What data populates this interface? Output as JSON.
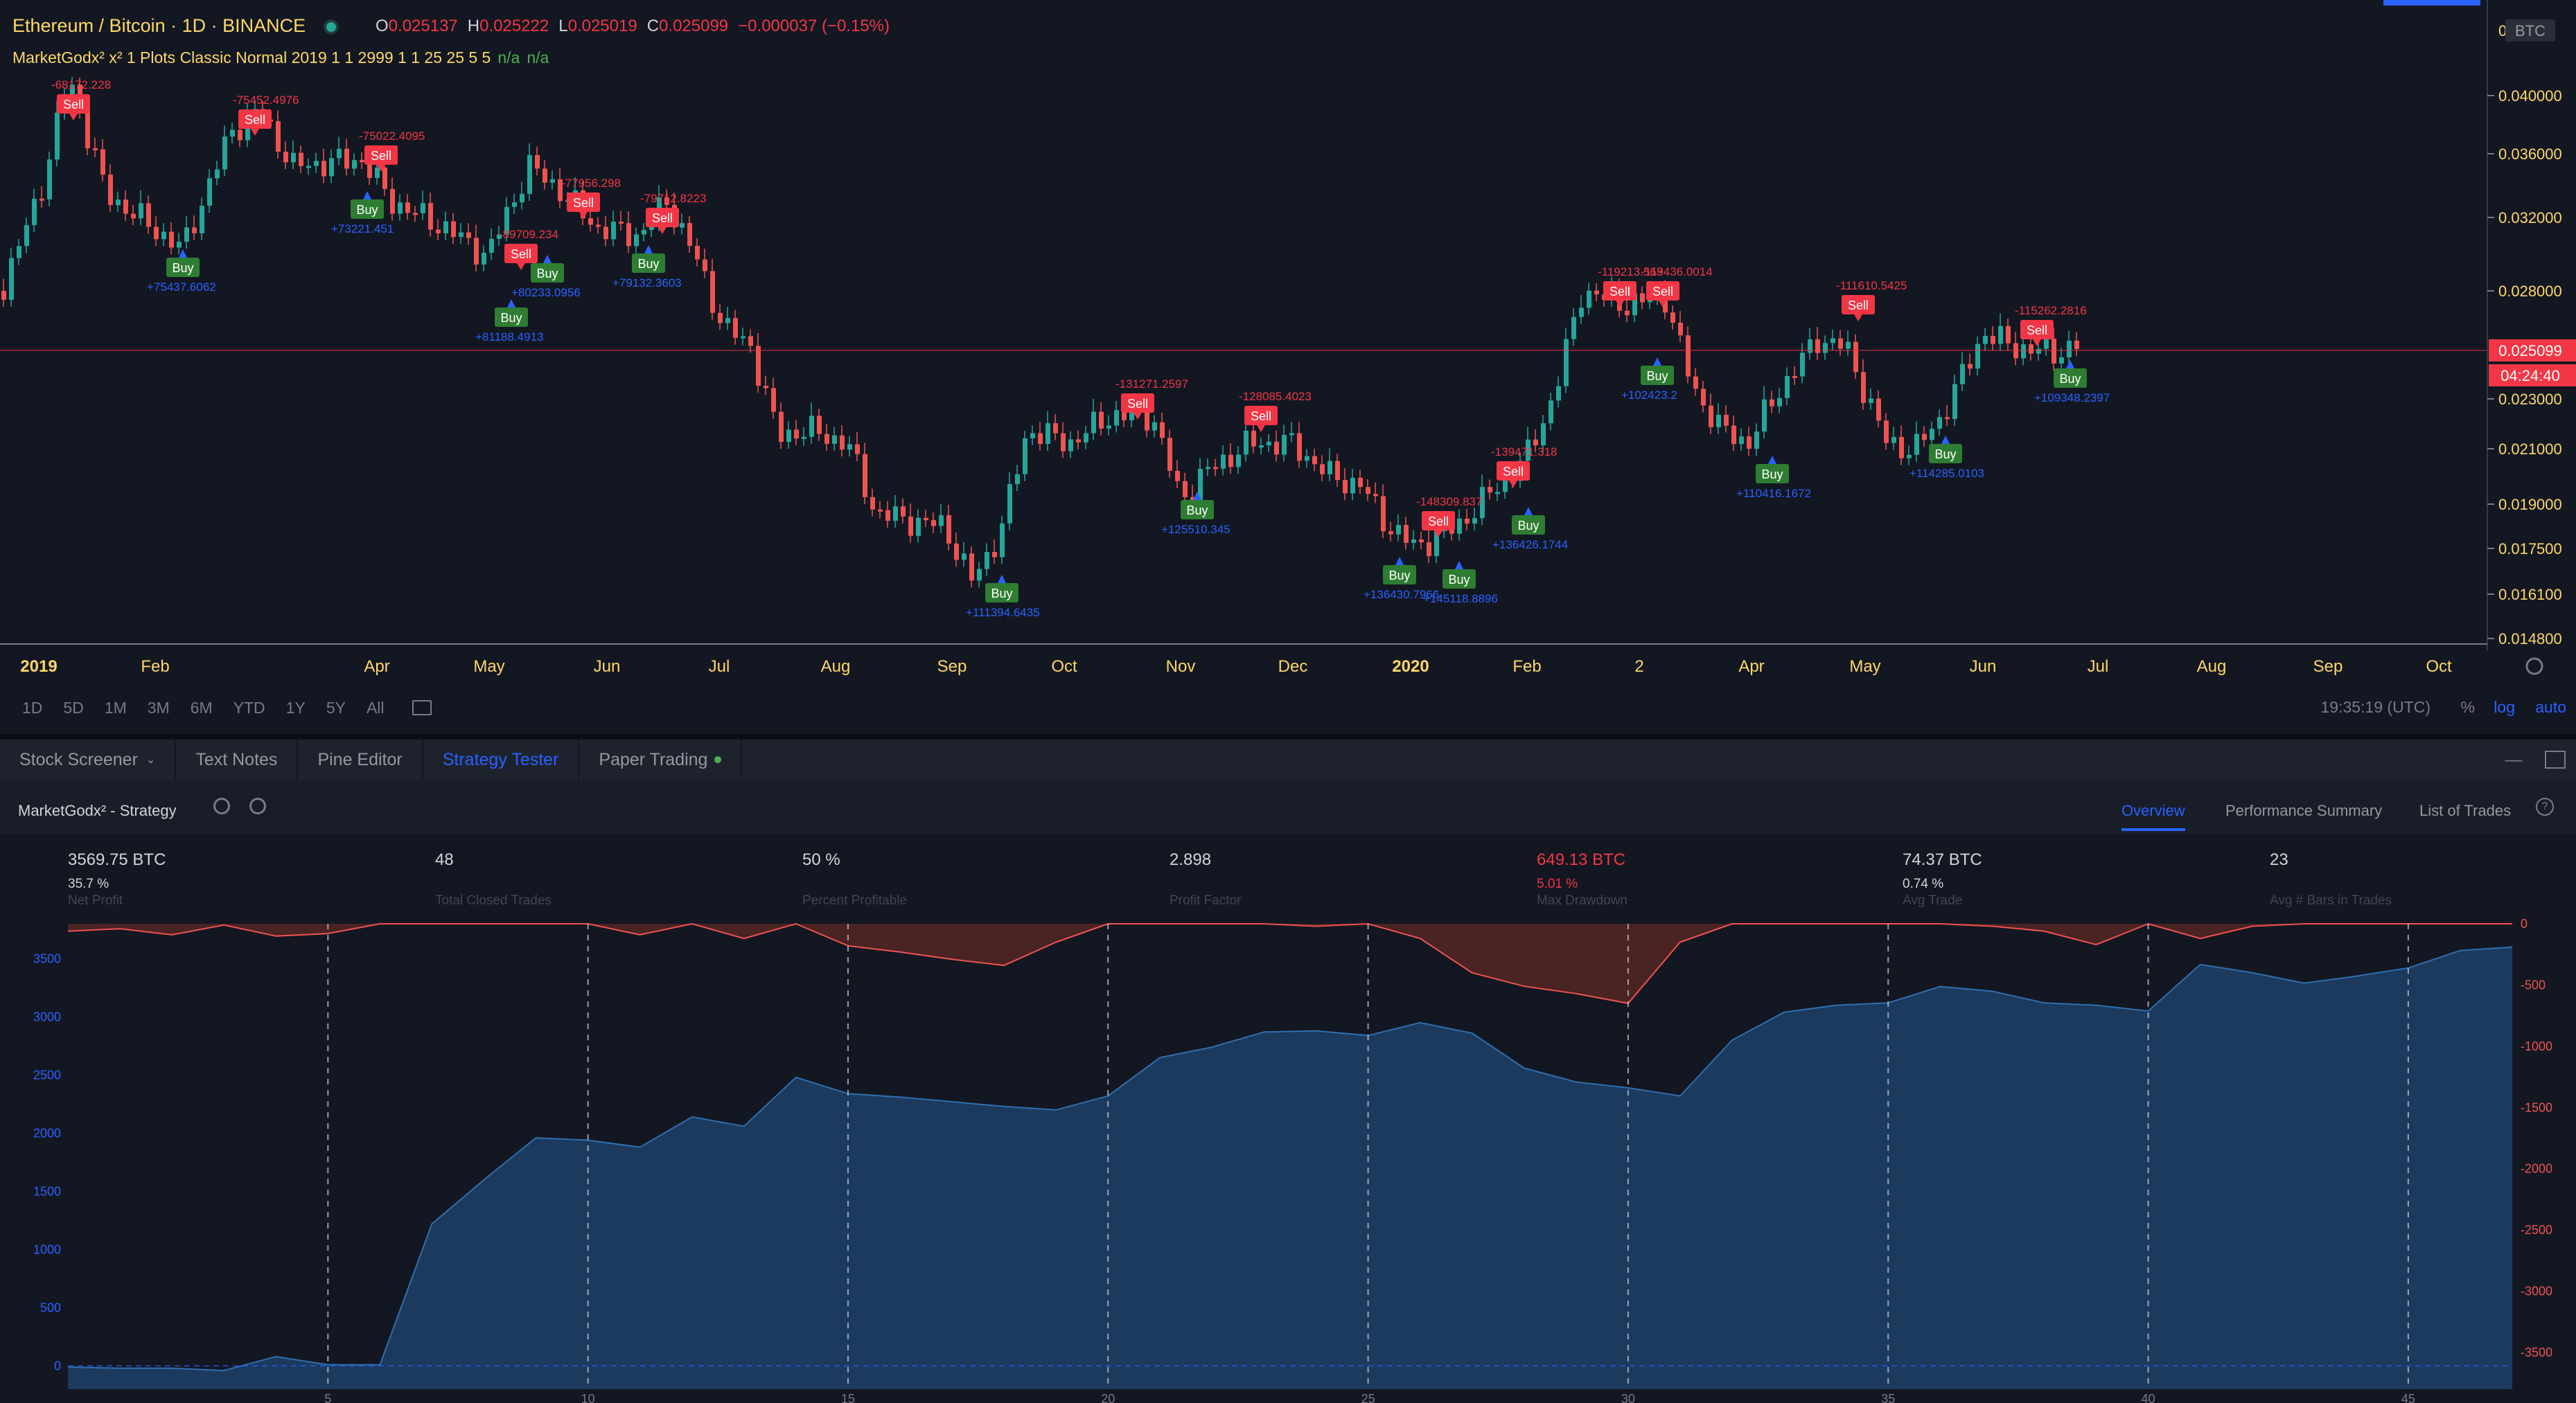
{
  "header": {
    "symbol_title": "Ethereum / Bitcoin · 1D · BINANCE",
    "ohlc": {
      "o_label": "O",
      "o": "0.025137",
      "h_label": "H",
      "h": "0.025222",
      "l_label": "L",
      "l": "0.025019",
      "c_label": "C",
      "c": "0.025099",
      "change": "−0.000037 (−0.15%)"
    },
    "indicator": "MarketGodx² x² 1 Plots Classic Normal 2019 1 1 2999 1 1 25 25 5 5",
    "indicator_na1": "n/a",
    "indicator_na2": "n/a"
  },
  "price_axis": {
    "currency": "BTC",
    "ticks": [
      "0.040000",
      "0.036000",
      "0.032000",
      "0.028000",
      "0.025099",
      "0.023000",
      "0.021000",
      "0.019000",
      "0.017500",
      "0.016100",
      "0.014800"
    ],
    "current_price": "0.025099",
    "countdown": "04:24:40",
    "top_tick": "0"
  },
  "time_axis": [
    "2019",
    "Feb",
    "Apr",
    "May",
    "Jun",
    "Jul",
    "Aug",
    "Sep",
    "Oct",
    "Nov",
    "Dec",
    "2020",
    "Feb",
    "2",
    "Apr",
    "May",
    "Jun",
    "Jul",
    "Aug",
    "Sep",
    "Oct"
  ],
  "signals": {
    "sell_label": "Sell",
    "buy_label": "Buy",
    "sell": [
      {
        "label": "-68172.228"
      },
      {
        "label": "-75452.4976"
      },
      {
        "label": "-75022.4095"
      },
      {
        "label": "-77956.298"
      },
      {
        "label": "-79712.8223"
      },
      {
        "label": "-89709.234"
      },
      {
        "label": "-131271.2597"
      },
      {
        "label": "-128085.4023"
      },
      {
        "label": "-139471.318"
      },
      {
        "label": "-148309.837"
      },
      {
        "label": "-119213.563"
      },
      {
        "label": "-119436.0014"
      },
      {
        "label": "-111610.5425"
      },
      {
        "label": "-115262.2816"
      }
    ],
    "buy": [
      {
        "label": "+75437.6062"
      },
      {
        "label": "+73221.451"
      },
      {
        "label": "+81188.4913"
      },
      {
        "label": "+80233.0956"
      },
      {
        "label": "+79132.3603"
      },
      {
        "label": "+111394.6435"
      },
      {
        "label": "+125510.345"
      },
      {
        "label": "+136430.7966"
      },
      {
        "label": "+145118.8896"
      },
      {
        "label": "+136426.1744"
      },
      {
        "label": "+102423.2"
      },
      {
        "label": "+110416.1672"
      },
      {
        "label": "+114285.0103"
      },
      {
        "label": "+109348.2397"
      }
    ]
  },
  "toolbar": {
    "ranges": [
      "1D",
      "5D",
      "1M",
      "3M",
      "6M",
      "YTD",
      "1Y",
      "5Y",
      "All"
    ],
    "clock": "19:35:19 (UTC)",
    "percent": "%",
    "log": "log",
    "auto": "auto"
  },
  "bottom_tabs": [
    {
      "label": "Stock Screener"
    },
    {
      "label": "Text Notes"
    },
    {
      "label": "Pine Editor"
    },
    {
      "label": "Strategy Tester"
    },
    {
      "label": "Paper Trading"
    }
  ],
  "strategy": {
    "name": "MarketGodx² - Strategy",
    "tabs": [
      "Overview",
      "Performance Summary",
      "List of Trades"
    ],
    "stats": [
      {
        "main": "3569.75 BTC",
        "sub": "35.7 %",
        "label": "Net Profit"
      },
      {
        "main": "48",
        "sub": "",
        "label": "Total Closed Trades"
      },
      {
        "main": "50 %",
        "sub": "",
        "label": "Percent Profitable"
      },
      {
        "main": "2.898",
        "sub": "",
        "label": "Profit Factor"
      },
      {
        "main": "649.13 BTC",
        "sub": "5.01 %",
        "label": "Max Drawdown"
      },
      {
        "main": "74.37 BTC",
        "sub": "0.74 %",
        "label": "Avg Trade"
      },
      {
        "main": "23",
        "sub": "",
        "label": "Avg # Bars in Trades"
      }
    ]
  },
  "colors": {
    "bg": "#131722",
    "up": "#26a69a",
    "down": "#ef5350",
    "sell": "#f23645",
    "buy": "#2e7d32",
    "buy_text": "#2962ff",
    "equity": "#1e4a7a",
    "drawdown": "#5d2a26"
  },
  "chart_data": [
    {
      "type": "area",
      "title": "",
      "x": [
        0,
        1,
        2,
        3,
        4,
        5,
        6,
        7,
        8,
        9,
        10,
        11,
        12,
        13,
        14,
        15,
        16,
        17,
        18,
        19,
        20,
        21,
        22,
        23,
        24,
        25,
        26,
        27,
        28,
        29,
        30,
        31,
        32,
        33,
        34,
        35,
        36,
        37,
        38,
        39,
        40,
        41,
        42,
        43,
        44,
        45,
        46,
        47
      ],
      "series": [
        {
          "values": [
            -10,
            -20,
            -20,
            -40,
            80,
            10,
            10,
            1220,
            1600,
            1960,
            1940,
            1880,
            2140,
            2060,
            2480,
            2340,
            2310,
            2270,
            2230,
            2200,
            2320,
            2650,
            2740,
            2870,
            2880,
            2840,
            2950,
            2860,
            2560,
            2440,
            2390,
            2320,
            2800,
            3040,
            3100,
            3120,
            3260,
            3220,
            3120,
            3100,
            3050,
            3450,
            3380,
            3290,
            3350,
            3420,
            3570,
            3600
          ]
        },
        {
          "values": [
            -60,
            -40,
            -90,
            -10,
            -100,
            -80,
            0,
            0,
            0,
            0,
            0,
            -90,
            0,
            -120,
            0,
            -180,
            -230,
            -290,
            -340,
            -150,
            0,
            0,
            0,
            0,
            -20,
            0,
            -120,
            -400,
            -510,
            -570,
            -650,
            -150,
            0,
            0,
            0,
            0,
            0,
            -20,
            -60,
            -170,
            0,
            -120,
            -20,
            0,
            0,
            0,
            0,
            0
          ]
        }
      ],
      "xlim": [
        0,
        47
      ],
      "ylim": [
        -200,
        3800
      ],
      "y2lim": [
        -3800,
        0
      ],
      "xticks": [
        "5",
        "10",
        "15",
        "20",
        "25",
        "30",
        "35",
        "40",
        "45"
      ],
      "yticks_left": [
        "3500",
        "3000",
        "2500",
        "2000",
        "1500",
        "1000",
        "500",
        "0"
      ],
      "yticks_right": [
        "0",
        "-500",
        "-1000",
        "-1500",
        "-2000",
        "-2500",
        "-3000",
        "-3500"
      ]
    }
  ]
}
